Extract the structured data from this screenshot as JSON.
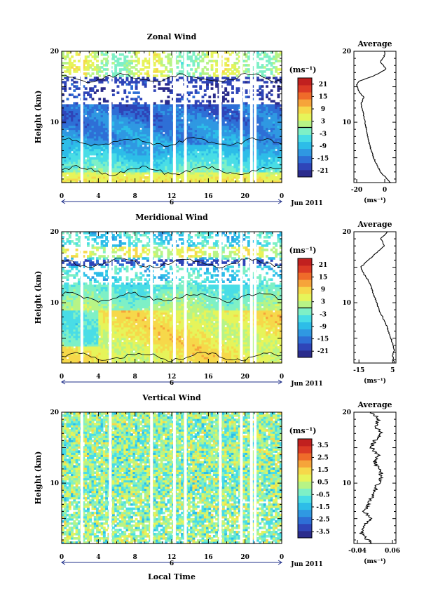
{
  "chart_data": [
    {
      "type": "heatmap",
      "title": "Zonal Wind",
      "ylabel": "Height (km)",
      "xlabel": "",
      "x_ticks": [
        "0",
        "4",
        "8",
        "12",
        "16",
        "20",
        "0"
      ],
      "y_ticks": [
        "20",
        "10"
      ],
      "xlim": [
        0,
        24
      ],
      "ylim": [
        1.5,
        20
      ],
      "date_label": "6",
      "month_label": "Jun 2011",
      "colorbar": {
        "unit": "(ms⁻¹)",
        "ticks": [
          "21",
          "15",
          "9",
          "3",
          "-3",
          "-9",
          "-15",
          "-21"
        ],
        "range": [
          -24,
          24
        ],
        "zero_line": 0
      },
      "gap_columns_hours": [
        2.2,
        5.3,
        9.8,
        12.3,
        13.5,
        17.3,
        19.6,
        20.7,
        21.1
      ],
      "average_profile": {
        "title": "Average",
        "x_ticks": [
          "-20",
          "0"
        ],
        "xlim": [
          -22,
          8
        ],
        "xlabel": "(ms⁻¹)",
        "y_ticks": [
          "20",
          "10"
        ],
        "height_km": [
          1.5,
          3,
          5,
          7,
          9,
          11,
          12.5,
          13.5,
          14.5,
          15.3,
          15.8,
          16.5,
          17.5,
          18.5,
          19.5
        ],
        "values": [
          4,
          -3,
          -8,
          -11,
          -13,
          -15,
          -17,
          -15,
          -19,
          -20,
          -18,
          -8,
          1,
          -3,
          0
        ]
      }
    },
    {
      "type": "heatmap",
      "title": "Meridional Wind",
      "ylabel": "Height (km)",
      "xlabel": "",
      "x_ticks": [
        "0",
        "4",
        "8",
        "12",
        "16",
        "20",
        "0"
      ],
      "y_ticks": [
        "20",
        "10"
      ],
      "xlim": [
        0,
        24
      ],
      "ylim": [
        1.5,
        20
      ],
      "date_label": "6",
      "month_label": "Jun 2011",
      "colorbar": {
        "unit": "(ms⁻¹)",
        "ticks": [
          "21",
          "15",
          "9",
          "3",
          "-3",
          "-9",
          "-15",
          "-21"
        ],
        "range": [
          -24,
          24
        ],
        "zero_line": 0
      },
      "gap_columns_hours": [
        2.2,
        5.3,
        9.8,
        12.3,
        13.5,
        17.3,
        19.6,
        20.7,
        21.1
      ],
      "average_profile": {
        "title": "Average",
        "x_ticks": [
          "-15",
          "5"
        ],
        "xlim": [
          -18,
          7
        ],
        "xlabel": "(ms⁻¹)",
        "y_ticks": [
          "20",
          "10"
        ],
        "height_km": [
          1.5,
          2.5,
          3.5,
          5,
          7,
          9,
          11,
          13,
          14,
          15,
          16.5,
          18,
          19,
          20
        ],
        "values": [
          6,
          5,
          6,
          4,
          1,
          -3,
          -6,
          -9,
          -12,
          -14,
          -7,
          0,
          -2,
          2
        ]
      }
    },
    {
      "type": "heatmap",
      "title": "Vertical Wind",
      "ylabel": "Height (km)",
      "xlabel": "Local Time",
      "x_ticks": [
        "0",
        "4",
        "8",
        "12",
        "16",
        "20",
        "0"
      ],
      "y_ticks": [
        "20",
        "10"
      ],
      "xlim": [
        0,
        24
      ],
      "ylim": [
        1.5,
        20
      ],
      "date_label": "6",
      "month_label": "Jun 2011",
      "colorbar": {
        "unit": "(ms⁻¹)",
        "ticks": [
          "3.5",
          "2.5",
          "1.5",
          "0.5",
          "-0.5",
          "-1.5",
          "-2.5",
          "-3.5"
        ],
        "range": [
          -4,
          4
        ]
      },
      "gap_columns_hours": [
        2.2,
        5.3,
        9.8,
        12.3,
        13.5,
        17.3,
        19.6,
        20.7,
        21.1
      ],
      "average_profile": {
        "title": "Average",
        "x_ticks": [
          "-0.04",
          "0.06"
        ],
        "xlim": [
          -0.05,
          0.07
        ],
        "xlabel": "(ms⁻¹)",
        "y_ticks": [
          "20",
          "10"
        ],
        "height_km": [
          1.5,
          3,
          4,
          5,
          6,
          7,
          8,
          9,
          10,
          11,
          12,
          13,
          14,
          15,
          16,
          17,
          18,
          19,
          20
        ],
        "values": [
          0.0,
          -0.03,
          -0.02,
          0.0,
          -0.02,
          -0.01,
          0.0,
          0.01,
          0.02,
          0.03,
          0.02,
          0.01,
          0.02,
          0.0,
          0.01,
          0.03,
          0.01,
          0.02,
          0.0
        ]
      }
    }
  ]
}
